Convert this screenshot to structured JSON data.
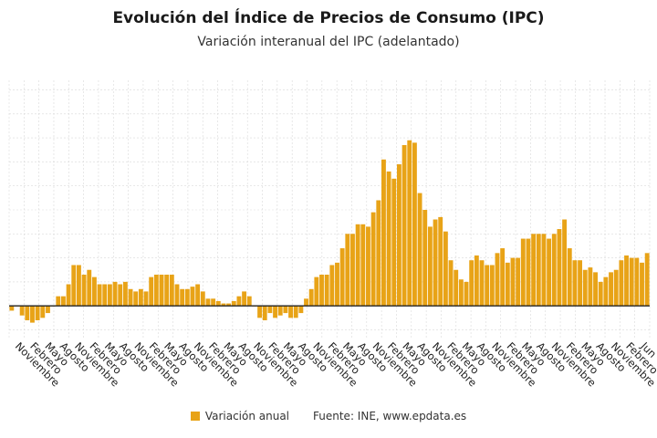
{
  "header": {
    "title": "Evolución del Índice de Precios de Consumo (IPC)",
    "subtitle": "Variación interanual del IPC (adelantado)"
  },
  "legend": {
    "series_label": "Variación anual",
    "source": "Fuente: INE, www.epdata.es"
  },
  "colors": {
    "bar": "#E8A317",
    "zero_line": "#222222",
    "grid": "#d9d9d9",
    "text": "#222222"
  },
  "chart_data": {
    "type": "bar",
    "grid": true,
    "x_tick_labels": [
      "Noviembre",
      "Febrero",
      "Mayo",
      "Agosto",
      "Noviembre",
      "Febrero",
      "Mayo",
      "Agosto",
      "Noviembre",
      "Febrero",
      "Mayo",
      "Agosto",
      "Noviembre",
      "Febrero",
      "Mayo",
      "Agosto",
      "Noviembre",
      "Febrero",
      "Mayo",
      "Agosto",
      "Noviembre",
      "Febrero",
      "Mayo",
      "Agosto",
      "Noviembre",
      "Febrero",
      "Mayo",
      "Agosto",
      "Noviembre",
      "Febrero",
      "Mayo",
      "Agosto",
      "Noviembre",
      "Febrero",
      "Mayo",
      "Agosto",
      "Noviembre",
      "Febrero",
      "Mayo",
      "Agosto",
      "Noviembre",
      "Febrero",
      "Jun"
    ],
    "ylim": [
      -1.4,
      9.4
    ],
    "series": [
      {
        "name": "Variación anual",
        "values": [
          -0.2,
          0.0,
          -0.4,
          -0.6,
          -0.7,
          -0.6,
          -0.5,
          -0.3,
          0.0,
          0.4,
          0.4,
          0.9,
          1.7,
          1.7,
          1.3,
          1.5,
          1.2,
          0.9,
          0.9,
          0.9,
          1.0,
          0.9,
          1.0,
          0.7,
          0.6,
          0.7,
          0.6,
          1.2,
          1.3,
          1.3,
          1.3,
          1.3,
          0.9,
          0.7,
          0.7,
          0.8,
          0.9,
          0.6,
          0.3,
          0.3,
          0.2,
          0.1,
          0.1,
          0.2,
          0.4,
          0.6,
          0.4,
          0.0,
          -0.5,
          -0.6,
          -0.3,
          -0.5,
          -0.4,
          -0.3,
          -0.5,
          -0.5,
          -0.3,
          0.3,
          0.7,
          1.2,
          1.3,
          1.3,
          1.7,
          1.8,
          2.4,
          3.0,
          3.0,
          3.4,
          3.4,
          3.3,
          3.9,
          4.4,
          6.1,
          5.6,
          5.3,
          5.9,
          6.7,
          6.9,
          6.8,
          4.7,
          4.0,
          3.3,
          3.6,
          3.7,
          3.1,
          1.9,
          1.5,
          1.1,
          1.0,
          1.9,
          2.1,
          1.9,
          1.7,
          1.7,
          2.2,
          2.4,
          1.8,
          2.0,
          2.0,
          2.8,
          2.8,
          3.0,
          3.0,
          3.0,
          2.8,
          3.0,
          3.2,
          3.6,
          2.4,
          1.9,
          1.9,
          1.5,
          1.6,
          1.4,
          1.0,
          1.2,
          1.4,
          1.5,
          1.9,
          2.1,
          2.0,
          2.0,
          1.8,
          2.2
        ]
      }
    ]
  }
}
